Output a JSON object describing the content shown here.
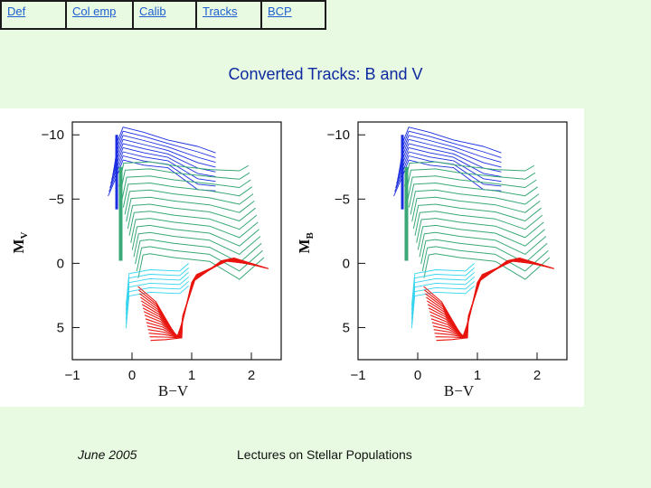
{
  "nav": {
    "tabs": [
      {
        "label": "Def"
      },
      {
        "label": "Col emp"
      },
      {
        "label": "Calib"
      },
      {
        "label": "Tracks"
      },
      {
        "label": "BCP"
      }
    ]
  },
  "slide": {
    "title": "Converted Tracks: B and V",
    "footer_date": "June 2005",
    "footer_title": "Lectures on Stellar Populations"
  },
  "chart_data": [
    {
      "type": "line",
      "xlabel": "B−V",
      "ylabel": "M_V",
      "ylabel_main": "M",
      "ylabel_sub": "V",
      "xlim": [
        -1,
        2.5
      ],
      "ylim": [
        7.5,
        -11
      ],
      "xticks": [
        -1,
        0,
        1,
        2
      ],
      "xtick_labels": [
        "−1",
        "0",
        "1",
        "2"
      ],
      "yticks": [
        -10,
        -5,
        0,
        5
      ],
      "ytick_labels": [
        "−10",
        "−5",
        "0",
        "5"
      ],
      "grid": false,
      "legend": "none",
      "colors": {
        "blue": "#1b2de0",
        "green": "#3aa877",
        "cyan": "#35d4ef",
        "red": "#e8150f"
      }
    },
    {
      "type": "line",
      "xlabel": "B−V",
      "ylabel": "M_B",
      "ylabel_main": "M",
      "ylabel_sub": "B",
      "xlim": [
        -1,
        2.5
      ],
      "ylim": [
        7.5,
        -11
      ],
      "xticks": [
        -1,
        0,
        1,
        2
      ],
      "xtick_labels": [
        "−1",
        "0",
        "1",
        "2"
      ],
      "yticks": [
        -10,
        -5,
        0,
        5
      ],
      "ytick_labels": [
        "−10",
        "−5",
        "0",
        "5"
      ],
      "grid": false,
      "legend": "none",
      "colors": {
        "blue": "#1b2de0",
        "green": "#3aa877",
        "cyan": "#35d4ef",
        "red": "#e8150f"
      }
    }
  ]
}
